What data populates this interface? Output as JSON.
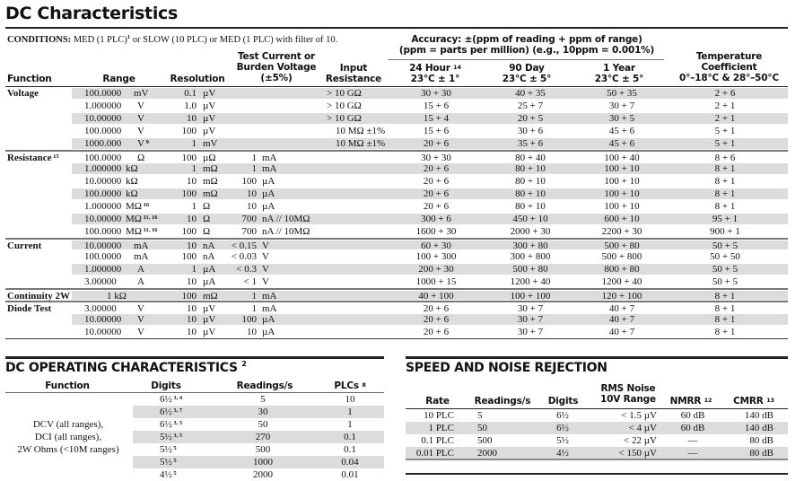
{
  "title": "DC Characteristics",
  "conditions": {
    "label": "CONDITIONS:",
    "text": "MED (1 PLC)",
    "sup": "1",
    "text2": " or SLOW (10 PLC) or MED (1 PLC) with filter of 10."
  },
  "headers": {
    "function": "Function",
    "range": "Range",
    "resolution": "Resolution",
    "test_current_1": "Test Current or",
    "test_current_2": "Burden Voltage",
    "test_current_3": "(±5%)",
    "input_1": "Input",
    "input_2": "Resistance",
    "accuracy_1": "Accuracy: ±(ppm of reading + ppm of range)",
    "accuracy_2": "(ppm = parts per million) (e.g., 10ppm = 0.001%)",
    "h24_1": "24 Hour",
    "h24_sup": "14",
    "h24_2": "23°C ± 1°",
    "d90_1": "90 Day",
    "d90_2": "23°C ± 5°",
    "y1_1": "1 Year",
    "y1_2": "23°C ± 5°",
    "tc_1": "Temperature",
    "tc_2": "Coefficient",
    "tc_3": "0°–18°C & 28°–50°C"
  },
  "rows": [
    {
      "fn": "Voltage",
      "range": "100.0000",
      "ru": "mV",
      "res": "0.1",
      "resu": "µV",
      "test": "",
      "testu": "",
      "input": "> 10 GΩ",
      "h24": "30 + 30",
      "d90": "40 + 35",
      "y1": "50 + 35",
      "tc": "2 + 6"
    },
    {
      "range": "1.000000",
      "ru": "V",
      "res": "1.0",
      "resu": "µV",
      "test": "",
      "testu": "",
      "input": "> 10 GΩ",
      "h24": "15 + 6",
      "d90": "25 + 7",
      "y1": "30 + 7",
      "tc": "2 + 1"
    },
    {
      "range": "10.00000",
      "ru": "V",
      "res": "10",
      "resu": "µV",
      "test": "",
      "testu": "",
      "input": "> 10 GΩ",
      "h24": "15 + 4",
      "d90": "20 + 5",
      "y1": "30 + 5",
      "tc": "2 + 1"
    },
    {
      "range": "100.0000",
      "ru": "V",
      "res": "100",
      "resu": "µV",
      "test": "",
      "testu": "",
      "input2": "10 MΩ ±1%",
      "h24": "15 + 6",
      "d90": "30 + 6",
      "y1": "45 + 6",
      "tc": "5 + 1"
    },
    {
      "range": "1000.000",
      "ru": "V",
      "rsup": "9",
      "res": "1",
      "resu": "mV",
      "test": "",
      "testu": "",
      "input2": "10 MΩ ±1%",
      "h24": "20 + 6",
      "d90": "35 + 6",
      "y1": "45 + 6",
      "tc": "5 + 1"
    },
    {
      "fn": "Resistance",
      "fsup": "15",
      "range": "100.0000",
      "ru": "Ω",
      "res": "100",
      "resu": "µΩ",
      "test": "1",
      "testu": "mA",
      "h24": "30 + 30",
      "d90": "80 + 40",
      "y1": "100 + 40",
      "tc": "8 + 6"
    },
    {
      "range": "1.000000",
      "ru": "kΩ",
      "tight": true,
      "res": "1",
      "resu": "mΩ",
      "test": "1",
      "testu": "mA",
      "h24": "20 + 6",
      "d90": "80 + 10",
      "y1": "100 + 10",
      "tc": "8 + 1"
    },
    {
      "range": "10.00000",
      "ru": "kΩ",
      "tight": true,
      "res": "10",
      "resu": "mΩ",
      "test": "100",
      "testu": "µA",
      "h24": "20 + 6",
      "d90": "80 + 10",
      "y1": "100 + 10",
      "tc": "8 + 1"
    },
    {
      "range": "100.0000",
      "ru": "kΩ",
      "tight": true,
      "res": "100",
      "resu": "mΩ",
      "test": "10",
      "testu": "µA",
      "h24": "20 + 6",
      "d90": "80 + 10",
      "y1": "100 + 10",
      "tc": "8 + 1"
    },
    {
      "range": "1.000000",
      "ru": "MΩ",
      "tight": true,
      "rsup": "16",
      "res": "1",
      "resu": "Ω",
      "test": "10",
      "testu": "µA",
      "h24": "20 + 6",
      "d90": "80 + 10",
      "y1": "100 + 10",
      "tc": "8 + 1"
    },
    {
      "range": "10.00000",
      "ru": "MΩ",
      "tight": true,
      "rsup": "11, 16",
      "res": "10",
      "resu": "Ω",
      "test": "700",
      "testu": "nA // 10MΩ",
      "h24": "300 + 6",
      "d90": "450 + 10",
      "y1": "600 + 10",
      "tc": "95 + 1"
    },
    {
      "range": "100.0000",
      "ru": "MΩ",
      "tight": true,
      "rsup": "11, 16",
      "res": "100",
      "resu": "Ω",
      "test": "700",
      "testu": "nA // 10MΩ",
      "h24": "1600 + 30",
      "d90": "2000 + 30",
      "y1": "2200 + 30",
      "tc": "900 + 1"
    },
    {
      "fn": "Current",
      "range": "10.00000",
      "ru": "mA",
      "res": "10",
      "resu": "nA",
      "test": "< 0.15",
      "testu": "V",
      "h24": "60 + 30",
      "d90": "300 + 80",
      "y1": "500 + 80",
      "tc": "50 + 5"
    },
    {
      "range": "100.0000",
      "ru": "mA",
      "res": "100",
      "resu": "nA",
      "test": "< 0.03",
      "testu": "V",
      "h24": "100 + 300",
      "d90": "300 + 800",
      "y1": "500 + 800",
      "tc": "50 + 50"
    },
    {
      "range": "1.000000",
      "ru": "A",
      "res": "1",
      "resu": "µA",
      "test": "< 0.3",
      "testu": "V",
      "h24": "200 + 30",
      "d90": "500 + 80",
      "y1": "800 + 80",
      "tc": "50 + 5"
    },
    {
      "range": "3.00000",
      "ru": "A",
      "res": "10",
      "resu": "µA",
      "test": "< 1",
      "testu": "V",
      "h24": "1000 + 15",
      "d90": "1200 + 40",
      "y1": "1200 + 40",
      "tc": "50 + 5"
    },
    {
      "fn": "Continuity 2W",
      "rangec": "1 kΩ",
      "res": "100",
      "resu": "mΩ",
      "test": "1",
      "testu": "mA",
      "h24": "40 + 100",
      "d90": "100 + 100",
      "y1": "120 + 100",
      "tc": "8 + 1"
    },
    {
      "fn": "Diode Test",
      "range": "3.00000",
      "ru": "V",
      "res": "10",
      "resu": "µV",
      "test": "1",
      "testu": "mA",
      "h24": "20 + 6",
      "d90": "30 + 7",
      "y1": "40 + 7",
      "tc": "8 + 1"
    },
    {
      "range": "10.00000",
      "ru": "V",
      "res": "10",
      "resu": "µV",
      "test": "100",
      "testu": "µA",
      "h24": "20 + 6",
      "d90": "30 + 7",
      "y1": "40 + 7",
      "tc": "8 + 1"
    },
    {
      "range": "10.00000",
      "ru": "V",
      "res": "10",
      "resu": "µV",
      "test": "10",
      "testu": "µA",
      "h24": "20 + 6",
      "d90": "30 + 7",
      "y1": "40 + 7",
      "tc": "8 + 1"
    }
  ],
  "dc_operating": {
    "title": "DC OPERATING CHARACTERISTICS",
    "title_sup": "2",
    "headers": {
      "function": "Function",
      "digits": "Digits",
      "readings": "Readings/s",
      "plcs": "PLCs",
      "plcs_sup": "8"
    },
    "function_lines": [
      "DCV (all ranges),",
      "DCI (all ranges),",
      "2W Ohms (<10M ranges)"
    ],
    "rows": [
      {
        "digits": "6½",
        "sup": "3, 4",
        "readings": "5",
        "plcs": "10"
      },
      {
        "digits": "6½",
        "sup": "3, 7",
        "readings": "30",
        "plcs": "1"
      },
      {
        "digits": "6½",
        "sup": "3, 5",
        "readings": "50",
        "plcs": "1"
      },
      {
        "digits": "5½",
        "sup": "3, 5",
        "readings": "270",
        "plcs": "0.1"
      },
      {
        "digits": "5½",
        "sup": "5",
        "readings": "500",
        "plcs": "0.1"
      },
      {
        "digits": "5½",
        "sup": "5",
        "readings": "1000",
        "plcs": "0.04"
      },
      {
        "digits": "4½",
        "sup": "5",
        "readings": "2000",
        "plcs": "0.01"
      }
    ]
  },
  "speed_noise": {
    "title": "SPEED AND NOISE REJECTION",
    "headers": {
      "rate": "Rate",
      "readings": "Readings/s",
      "digits": "Digits",
      "noise_1": "RMS Noise",
      "noise_2": "10V Range",
      "nmrr": "NMRR",
      "nmrr_sup": "12",
      "cmrr": "CMRR",
      "cmrr_sup": "13"
    },
    "rows": [
      {
        "rate": "10 PLC",
        "readings": "5",
        "digits": "6½",
        "noise": "< 1.5 µV",
        "nmrr": "60 dB",
        "cmrr": "140 dB"
      },
      {
        "rate": "1 PLC",
        "readings": "50",
        "digits": "6½",
        "noise": "< 4 µV",
        "nmrr": "60 dB",
        "cmrr": "140 dB"
      },
      {
        "rate": "0.1 PLC",
        "readings": "500",
        "digits": "5½",
        "noise": "< 22 µV",
        "nmrr": "—",
        "cmrr": "80 dB"
      },
      {
        "rate": "0.01 PLC",
        "readings": "2000",
        "digits": "4½",
        "noise": "< 150 µV",
        "nmrr": "—",
        "cmrr": "80 dB"
      }
    ]
  }
}
